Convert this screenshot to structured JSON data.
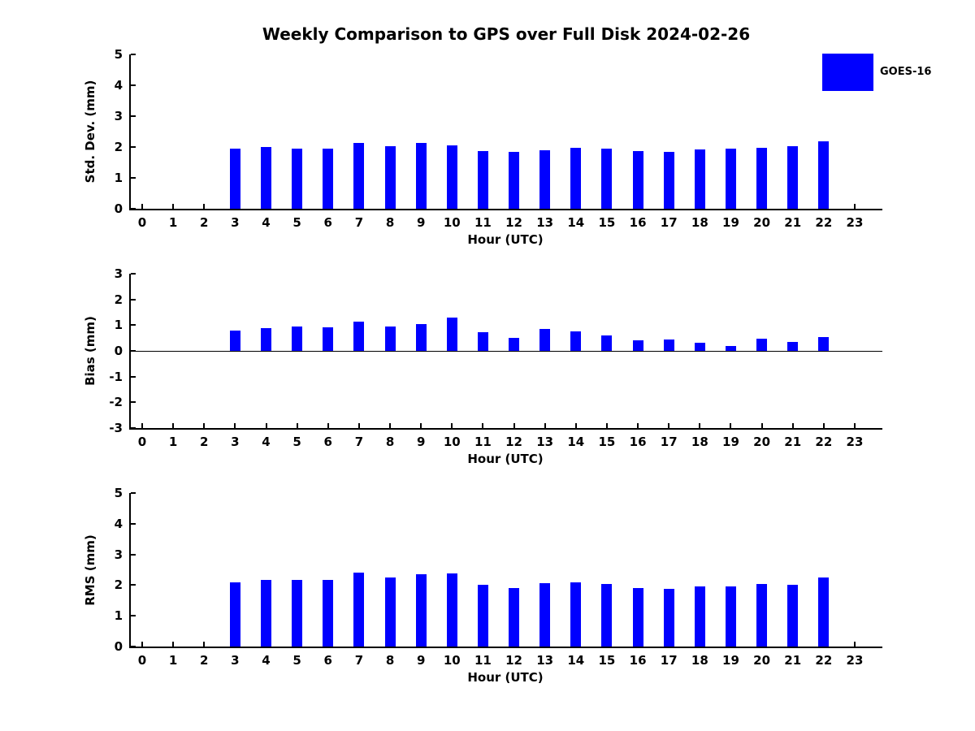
{
  "title": "Weekly Comparison to GPS over Full Disk 2024-02-26",
  "legend": {
    "label": "GOES-16",
    "color": "#0000ff"
  },
  "colors": {
    "bar": "#0000ff",
    "axis": "#000000",
    "text": "#000000",
    "background": "#ffffff"
  },
  "chart_data": [
    {
      "type": "bar",
      "name": "std-dev",
      "title": "",
      "xlabel": "Hour (UTC)",
      "ylabel": "Std. Dev. (mm)",
      "ylim": [
        0,
        5
      ],
      "yticks": [
        0,
        1,
        2,
        3,
        4,
        5
      ],
      "grid": false,
      "categories": [
        0,
        1,
        2,
        3,
        4,
        5,
        6,
        7,
        8,
        9,
        10,
        11,
        12,
        13,
        14,
        15,
        16,
        17,
        18,
        19,
        20,
        21,
        22,
        23
      ],
      "values": [
        null,
        null,
        null,
        1.95,
        2.0,
        1.95,
        1.95,
        2.12,
        2.02,
        2.12,
        2.05,
        1.87,
        1.83,
        1.9,
        1.97,
        1.95,
        1.87,
        1.84,
        1.92,
        1.96,
        1.98,
        2.02,
        2.18,
        null
      ]
    },
    {
      "type": "bar",
      "name": "bias",
      "title": "",
      "xlabel": "Hour (UTC)",
      "ylabel": "Bias (mm)",
      "ylim": [
        -3,
        3
      ],
      "yticks": [
        -3,
        -2,
        -1,
        0,
        1,
        2,
        3
      ],
      "zero_line": true,
      "grid": false,
      "categories": [
        0,
        1,
        2,
        3,
        4,
        5,
        6,
        7,
        8,
        9,
        10,
        11,
        12,
        13,
        14,
        15,
        16,
        17,
        18,
        19,
        20,
        21,
        22,
        23
      ],
      "values": [
        null,
        null,
        null,
        0.8,
        0.88,
        0.95,
        0.92,
        1.13,
        0.95,
        1.05,
        1.3,
        0.73,
        0.52,
        0.85,
        0.76,
        0.6,
        0.42,
        0.43,
        0.32,
        0.2,
        0.48,
        0.36,
        0.54,
        null
      ]
    },
    {
      "type": "bar",
      "name": "rms",
      "title": "",
      "xlabel": "Hour (UTC)",
      "ylabel": "RMS (mm)",
      "ylim": [
        0,
        5
      ],
      "yticks": [
        0,
        1,
        2,
        3,
        4,
        5
      ],
      "grid": false,
      "categories": [
        0,
        1,
        2,
        3,
        4,
        5,
        6,
        7,
        8,
        9,
        10,
        11,
        12,
        13,
        14,
        15,
        16,
        17,
        18,
        19,
        20,
        21,
        22,
        23
      ],
      "values": [
        null,
        null,
        null,
        2.1,
        2.18,
        2.16,
        2.18,
        2.4,
        2.24,
        2.36,
        2.38,
        2.02,
        1.9,
        2.06,
        2.1,
        2.04,
        1.91,
        1.88,
        1.95,
        1.95,
        2.04,
        2.02,
        2.25,
        null
      ]
    }
  ]
}
